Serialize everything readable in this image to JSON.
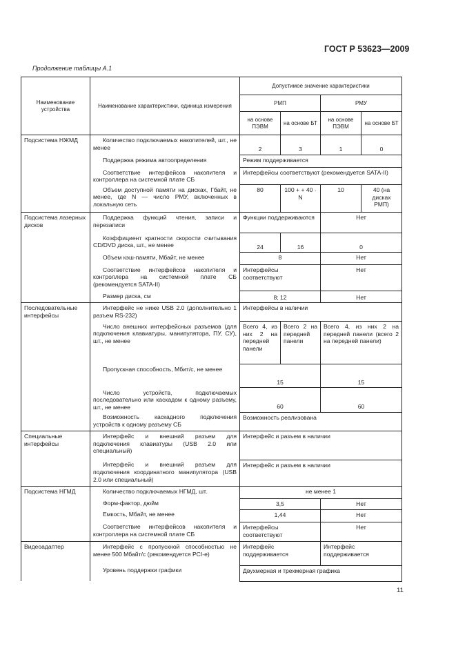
{
  "header": {
    "standard": "ГОСТ Р 53623—2009",
    "caption": "Продолжение таблицы А.1"
  },
  "footer": {
    "page_number": "11"
  },
  "table": {
    "head": {
      "device": "Наименование устройства",
      "characteristic": "Наименование характеристики, единица измерения",
      "allowed": "Допустимое значение характеристики",
      "rmp": "РМП",
      "rmu": "РМУ",
      "sub": [
        "на основе ПЭВМ",
        "на основе БТ",
        "на основе ПЭВМ",
        "на основе БТ"
      ]
    },
    "groups": [
      {
        "device": "Подсистема НЖМД",
        "rows": [
          {
            "char": "Количество подключаемых накопителей, шт., не менее",
            "cells": [
              {
                "t": "2",
                "cs": 1,
                "k": "c b"
              },
              {
                "t": "3",
                "cs": 1,
                "k": "c b"
              },
              {
                "t": "1",
                "cs": 1,
                "k": "c b"
              },
              {
                "t": "0",
                "cs": 1,
                "k": "c b"
              }
            ]
          },
          {
            "char": "Поддержка режима автоопределения",
            "cells": [
              {
                "t": "Режим поддерживается",
                "cs": 4,
                "k": "l"
              }
            ]
          },
          {
            "char": "Соответствие интерфейсов накопителя и контроллера на системной плате СБ",
            "cells": [
              {
                "t": "Интерфейсы соответствуют (рекомендуется SATA-II)",
                "cs": 4,
                "k": "l nt"
              }
            ]
          },
          {
            "char": "Объем доступной памяти на дисках, Гбайт, не менее, где N — число РМУ, включенных в локальную сеть",
            "cells": [
              {
                "t": "80",
                "cs": 1,
                "k": "c"
              },
              {
                "t": "100 + + 40 · N",
                "cs": 1,
                "k": "c"
              },
              {
                "t": "10",
                "cs": 1,
                "k": "c"
              },
              {
                "t": "40 (на дисках РМП)",
                "cs": 1,
                "k": "c"
              }
            ]
          }
        ]
      },
      {
        "device": "Подсистема лазерных дисков",
        "rows": [
          {
            "char": "Поддержка функций чтения, записи и перезаписи",
            "cells": [
              {
                "t": "Функции поддерживаются",
                "cs": 2,
                "k": "l"
              },
              {
                "t": "Нет",
                "cs": 2,
                "k": "c"
              }
            ]
          },
          {
            "char": "Коэффициент кратности скорости считывания CD/DVD диска, шт., не менее",
            "cells": [
              {
                "t": "24",
                "cs": 1,
                "k": "c b"
              },
              {
                "t": "16",
                "cs": 1,
                "k": "c b"
              },
              {
                "t": "0",
                "cs": 2,
                "k": "c b"
              }
            ]
          },
          {
            "char": "Объем кэш-памяти, Мбайт, не менее",
            "cells": [
              {
                "t": "8",
                "cs": 2,
                "k": "c"
              },
              {
                "t": "Нет",
                "cs": 2,
                "k": "c"
              }
            ]
          },
          {
            "char": "Соответствие интерфейсов накопителя и контроллера на системной плате СБ (рекомендуется SATA-II)",
            "cells": [
              {
                "t": "Интерфейсы соответствуют",
                "cs": 2,
                "k": "l nt"
              },
              {
                "t": "Нет",
                "cs": 2,
                "k": "c nt"
              }
            ]
          },
          {
            "char": "Размер диска, см",
            "cells": [
              {
                "t": "8; 12",
                "cs": 2,
                "k": "c nt b"
              },
              {
                "t": "Нет",
                "cs": 2,
                "k": "c nt b"
              }
            ]
          }
        ]
      },
      {
        "device": "Последовательные интерфейсы",
        "rows": [
          {
            "char": "Интерфейс не ниже USB 2.0 (дополнительно 1 разъем RS-232)",
            "cells": [
              {
                "t": "Интерфейсы в наличии",
                "cs": 4,
                "k": "l"
              }
            ]
          },
          {
            "char": "Число внешних интерфейсных разъемов (для подключения клавиатуры, манипулятора, ПУ, СУ), шт., не менее",
            "cells": [
              {
                "t": "Всего 4, из них 2 на передней панели",
                "cs": 1,
                "k": "l"
              },
              {
                "t": "Всего 2 на передней панели",
                "cs": 1,
                "k": "l"
              },
              {
                "t": "Всего 4, из них 2 на передней панели (всего 2 на передней панели)",
                "cs": 2,
                "k": "l"
              }
            ]
          },
          {
            "char": "Пропускная способность, Мбит/с, не менее",
            "cells": [
              {
                "t": "15",
                "cs": 2,
                "k": "c b"
              },
              {
                "t": "15",
                "cs": 2,
                "k": "c b"
              }
            ]
          },
          {
            "char": "Число устройств, подключаемых последовательно или каскадом к одному разъему, шт., не менее",
            "cells": [
              {
                "t": "60",
                "cs": 2,
                "k": "c b nt"
              },
              {
                "t": "60",
                "cs": 2,
                "k": "c b nt"
              }
            ]
          },
          {
            "char": "Возможность каскадного подключения устройств к одному разъему СБ",
            "cells": [
              {
                "t": "Возможность реализована",
                "cs": 4,
                "k": "l"
              }
            ]
          }
        ]
      },
      {
        "device": "Специальные интерфейсы",
        "rows": [
          {
            "char": "Интерфейс и внешний разъем для подключения клавиатуры (USB 2.0 или специальный)",
            "cells": [
              {
                "t": "Интерфейс и разъем в наличии",
                "cs": 4,
                "k": "l"
              }
            ]
          },
          {
            "char": "Интерфейс и внешний разъем для подключения координатного манипулятора (USB 2.0 или специальный)",
            "cells": [
              {
                "t": "Интерфейс и разъем в наличии",
                "cs": 4,
                "k": "l nt"
              }
            ]
          }
        ]
      },
      {
        "device": "Подсистема НГМД",
        "rows": [
          {
            "char": "Количество подключаемых НГМД, шт.",
            "cells": [
              {
                "t": "не менее 1",
                "cs": 4,
                "k": "c"
              }
            ]
          },
          {
            "char": "Форм-фактор, дюйм",
            "cells": [
              {
                "t": "3,5",
                "cs": 2,
                "k": "c"
              },
              {
                "t": "Нет",
                "cs": 2,
                "k": "c"
              }
            ]
          },
          {
            "char": "Емкость, Мбайт, не менее",
            "cells": [
              {
                "t": "1,44",
                "cs": 2,
                "k": "c nt"
              },
              {
                "t": "Нет",
                "cs": 2,
                "k": "c nt"
              }
            ]
          },
          {
            "char": "Соответствие интерфейсов накопителя и контроллера на системной плате СБ",
            "cells": [
              {
                "t": "Интерфейсы соответствуют",
                "cs": 2,
                "k": "l nt"
              },
              {
                "t": "Нет",
                "cs": 2,
                "k": "c nt"
              }
            ]
          }
        ]
      },
      {
        "device": "Видеоадаптер",
        "rows": [
          {
            "char": "Интерфейс с пропускной способностью не менее 500 Мбайт/с (рекомендуется PCI-e)",
            "cells": [
              {
                "t": "Интерфейс поддерживается",
                "cs": 2,
                "k": "l"
              },
              {
                "t": "Интерфейс поддерживается",
                "cs": 2,
                "k": "l"
              }
            ]
          },
          {
            "char": "Уровень поддержки графики",
            "cells": [
              {
                "t": "Двухмерная и трехмерная графика",
                "cs": 4,
                "k": "l"
              }
            ]
          }
        ]
      }
    ]
  }
}
